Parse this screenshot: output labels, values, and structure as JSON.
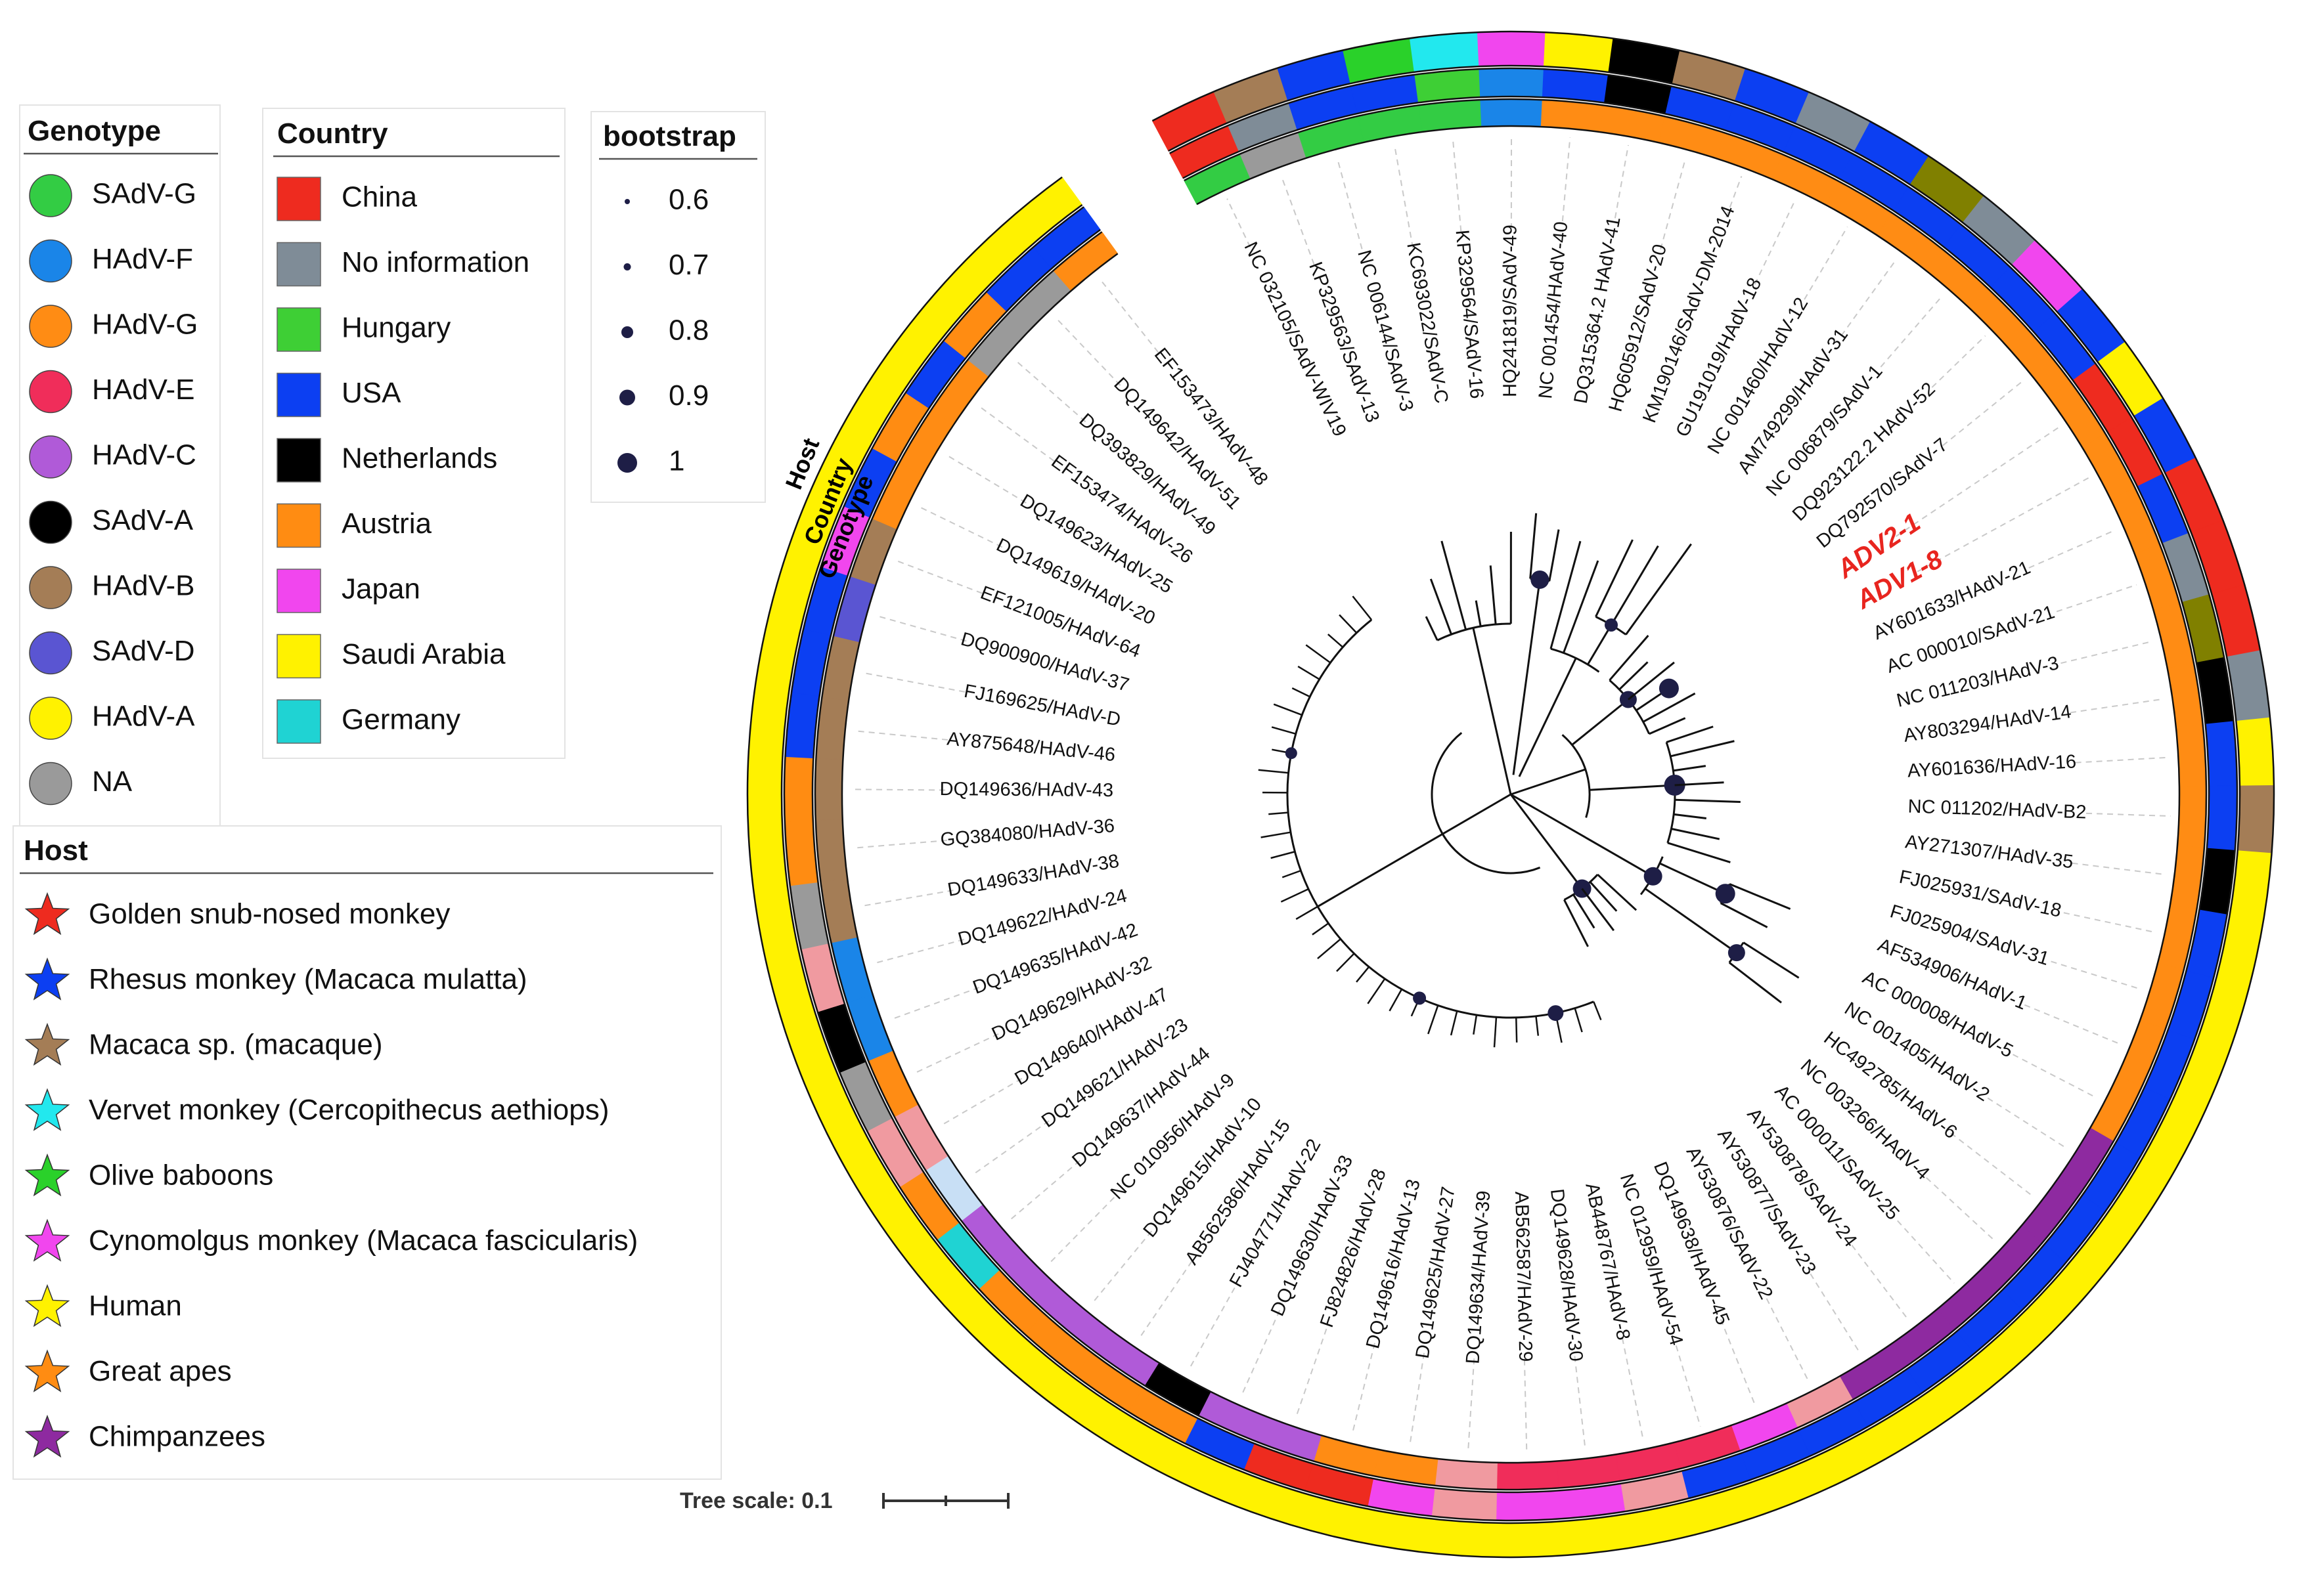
{
  "legends": {
    "genotype": {
      "title": "Genotype",
      "items": [
        {
          "label": "SAdV-G",
          "color": "#33cc44"
        },
        {
          "label": "HAdV-F",
          "color": "#1a85e8"
        },
        {
          "label": "HAdV-G",
          "color": "#ff8c14"
        },
        {
          "label": "HAdV-E",
          "color": "#f02d5a"
        },
        {
          "label": "HAdV-C",
          "color": "#b05ad8"
        },
        {
          "label": "SAdV-A",
          "color": "#000000"
        },
        {
          "label": "HAdV-B",
          "color": "#a47d56"
        },
        {
          "label": "SAdV-D",
          "color": "#5a55d2"
        },
        {
          "label": "HAdV-A",
          "color": "#fff200"
        },
        {
          "label": "NA",
          "color": "#9a9a9a"
        }
      ]
    },
    "country": {
      "title": "Country",
      "items": [
        {
          "label": "China",
          "color": "#ee2b1f"
        },
        {
          "label": "No information",
          "color": "#7f8c97"
        },
        {
          "label": "Hungary",
          "color": "#3ecf35"
        },
        {
          "label": "USA",
          "color": "#0c3ff2"
        },
        {
          "label": "Netherlands",
          "color": "#000000"
        },
        {
          "label": "Austria",
          "color": "#ff8c12"
        },
        {
          "label": "Japan",
          "color": "#f146ee"
        },
        {
          "label": "Saudi Arabia",
          "color": "#fff200"
        },
        {
          "label": "Germany",
          "color": "#1fd3d3"
        }
      ]
    },
    "bootstrap": {
      "title": "bootstrap",
      "items": [
        "0.6",
        "0.7",
        "0.8",
        "0.9",
        "1"
      ],
      "color": "#1e1e46"
    },
    "host": {
      "title": "Host",
      "items": [
        {
          "label": "Golden snub-nosed monkey",
          "color": "#ee2b1f"
        },
        {
          "label": "Rhesus monkey (Macaca mulatta)",
          "color": "#0c3ff2"
        },
        {
          "label": "Macaca sp. (macaque)",
          "color": "#a47d56"
        },
        {
          "label": "Vervet monkey (Cercopithecus aethiops)",
          "color": "#22e8ee"
        },
        {
          "label": "Olive baboons",
          "color": "#2ad12a"
        },
        {
          "label": "Cynomolgus monkey (Macaca fascicularis)",
          "color": "#f146ee"
        },
        {
          "label": "Human",
          "color": "#fff200"
        },
        {
          "label": "Great apes",
          "color": "#ff8c12"
        },
        {
          "label": "Chimpanzees",
          "color": "#8e2aa0"
        }
      ]
    }
  },
  "ring_labels": {
    "host": "Host",
    "country": "Country",
    "genotype": "Genotype"
  },
  "tree_scale": {
    "label": "Tree scale: 0.1"
  },
  "highlight_color": "#e8251f",
  "taxa": [
    {
      "name": "NC 032105/SAdV-WIV19"
    },
    {
      "name": "KP329563/SAdV-13"
    },
    {
      "name": "NC 006144/SAdV-3"
    },
    {
      "name": "KC693022/SAdV-C"
    },
    {
      "name": "KP329564/SAdV-16"
    },
    {
      "name": "HQ241819/SAdV-49"
    },
    {
      "name": "NC 001454/HAdV-40"
    },
    {
      "name": "DQ315364.2 HAdV-41"
    },
    {
      "name": "HQ605912/SAdV-20"
    },
    {
      "name": "KM190146/SAdV-DM-2014"
    },
    {
      "name": "GU191019/HAdV-18"
    },
    {
      "name": "NC 001460/HAdV-12"
    },
    {
      "name": "AM749299/HAdV-31"
    },
    {
      "name": "NC 006879/SAdV-1"
    },
    {
      "name": "DQ923122.2 HAdV-52"
    },
    {
      "name": "DQ792570/SAdV-7"
    },
    {
      "name": "ADV2-1",
      "highlight": true
    },
    {
      "name": "ADV1-8",
      "highlight": true
    },
    {
      "name": "AY601633/HAdV-21"
    },
    {
      "name": "AC 000010/SAdV-21"
    },
    {
      "name": "NC 011203/HAdV-3"
    },
    {
      "name": "AY803294/HAdV-14"
    },
    {
      "name": "AY601636/HAdV-16"
    },
    {
      "name": "NC 011202/HAdV-B2"
    },
    {
      "name": "AY271307/HAdV-35"
    },
    {
      "name": "FJ025931/SAdV-18"
    },
    {
      "name": "FJ025904/SAdV-31"
    },
    {
      "name": "AF534906/HAdV-1"
    },
    {
      "name": "AC 000008/HAdV-5"
    },
    {
      "name": "NC 001405/HAdV-2"
    },
    {
      "name": "HC492785/HAdV-6"
    },
    {
      "name": "NC 003266/HAdV-4"
    },
    {
      "name": "AC 000011/SAdV-25"
    },
    {
      "name": "AY530878/SAdV-24"
    },
    {
      "name": "AY530877/SAdV-23"
    },
    {
      "name": "AY530876/SAdV-22"
    },
    {
      "name": "DQ149638/HAdV-45"
    },
    {
      "name": "NC 012959/HAdV-54"
    },
    {
      "name": "AB448767/HAdV-8"
    },
    {
      "name": "DQ149628/HAdV-30"
    },
    {
      "name": "AB562587/HAdV-29"
    },
    {
      "name": "DQ149634/HAdV-39"
    },
    {
      "name": "DQ149625/HAdV-27"
    },
    {
      "name": "DQ149616/HAdV-13"
    },
    {
      "name": "FJ824826/HAdV-28"
    },
    {
      "name": "DQ149630/HAdV-33"
    },
    {
      "name": "FJ404771/HAdV-22"
    },
    {
      "name": "AB562586/HAdV-15"
    },
    {
      "name": "DQ149615/HAdV-10"
    },
    {
      "name": "NC 010956/HAdV-9"
    },
    {
      "name": "DQ149637/HAdV-44"
    },
    {
      "name": "DQ149621/HAdV-23"
    },
    {
      "name": "DQ149640/HAdV-47"
    },
    {
      "name": "DQ149629/HAdV-32"
    },
    {
      "name": "DQ149635/HAdV-42"
    },
    {
      "name": "DQ149622/HAdV-24"
    },
    {
      "name": "DQ149633/HAdV-38"
    },
    {
      "name": "GQ384080/HAdV-36"
    },
    {
      "name": "DQ149636/HAdV-43"
    },
    {
      "name": "AY875648/HAdV-46"
    },
    {
      "name": "FJ169625/HAdV-D"
    },
    {
      "name": "DQ900900/HAdV-37"
    },
    {
      "name": "EF121005/HAdV-64"
    },
    {
      "name": "DQ149619/HAdV-20"
    },
    {
      "name": "DQ149623/HAdV-25"
    },
    {
      "name": "EF153474/HAdV-26"
    },
    {
      "name": "DQ393829/HAdV-49"
    },
    {
      "name": "DQ149642/HAdV-51"
    },
    {
      "name": "EF153473/HAdV-48"
    }
  ],
  "rings": {
    "host": [
      "#ee2b1f",
      "#a47d56",
      "#0c3ff2",
      "#2ad12a",
      "#22e8ee",
      "#f146ee",
      "#fff200",
      "#000000",
      "#a47d56",
      "#0c3ff2",
      "#7f8c97",
      "#0c3ff2",
      "#808000",
      "#7f8c97",
      "#f146ee",
      "#0c3ff2",
      "#fff200",
      "#0c3ff2",
      "#ee2b1f",
      "#ee2b1f",
      "#ee2b1f",
      "#7f8c97",
      "#fff200",
      "#a47d56",
      "#fff200",
      "#fff200",
      "#fff200",
      "#fff200",
      "#fff200",
      "#fff200",
      "#fff200",
      "#fff200",
      "#fff200",
      "#fff200",
      "#fff200",
      "#fff200",
      "#fff200",
      "#fff200",
      "#fff200",
      "#fff200",
      "#fff200",
      "#fff200",
      "#fff200",
      "#fff200",
      "#fff200",
      "#fff200",
      "#fff200",
      "#fff200",
      "#fff200",
      "#fff200",
      "#fff200",
      "#fff200",
      "#fff200",
      "#fff200",
      "#fff200",
      "#fff200",
      "#fff200",
      "#fff200",
      "#fff200",
      "#fff200",
      "#fff200",
      "#fff200",
      "#fff200",
      "#fff200",
      "#fff200",
      "#fff200",
      "#fff200",
      "#fff200",
      "#fff200"
    ],
    "country": [
      "#ee2b1f",
      "#7f8c97",
      "#0c3ff2",
      "#0c3ff2",
      "#3ecf35",
      "#1a85e8",
      "#0c3ff2",
      "#000000",
      "#0c3ff2",
      "#0c3ff2",
      "#0c3ff2",
      "#0c3ff2",
      "#0c3ff2",
      "#0c3ff2",
      "#0c3ff2",
      "#0c3ff2",
      "#ee2b1f",
      "#ee2b1f",
      "#0c3ff2",
      "#7f8c97",
      "#808000",
      "#000000",
      "#0c3ff2",
      "#0c3ff2",
      "#000000",
      "#0c3ff2",
      "#0c3ff2",
      "#0c3ff2",
      "#0c3ff2",
      "#0c3ff2",
      "#0c3ff2",
      "#0c3ff2",
      "#0c3ff2",
      "#0c3ff2",
      "#0c3ff2",
      "#0c3ff2",
      "#0c3ff2",
      "#0c3ff2",
      "#f09aa0",
      "#f146ee",
      "#f146ee",
      "#f09aa0",
      "#f146ee",
      "#ee2b1f",
      "#ee2b1f",
      "#0c3ff2",
      "#ff8c12",
      "#ff8c12",
      "#ff8c12",
      "#ff8c12",
      "#1fd3d3",
      "#ff8c12",
      "#f09aa0",
      "#9a9a9a",
      "#000000",
      "#f09aa0",
      "#9a9a9a",
      "#ff8c12",
      "#ff8c12",
      "#0c3ff2",
      "#0c3ff2",
      "#0c3ff2",
      "#f146ee",
      "#0c3ff2",
      "#ff8c12",
      "#0c3ff2",
      "#ff8c12",
      "#0c3ff2",
      "#0c3ff2"
    ],
    "genotype": [
      "#33cc44",
      "#9a9a9a",
      "#33cc44",
      "#33cc44",
      "#33cc44",
      "#1a85e8",
      "#ff8c14",
      "#ff8c14",
      "#ff8c14",
      "#ff8c14",
      "#ff8c14",
      "#ff8c14",
      "#ff8c14",
      "#ff8c14",
      "#ff8c14",
      "#ff8c14",
      "#ff8c14",
      "#ff8c14",
      "#ff8c14",
      "#ff8c14",
      "#ff8c14",
      "#ff8c14",
      "#ff8c14",
      "#ff8c14",
      "#ff8c14",
      "#ff8c14",
      "#ff8c14",
      "#ff8c14",
      "#ff8c14",
      "#8e2aa0",
      "#8e2aa0",
      "#8e2aa0",
      "#8e2aa0",
      "#8e2aa0",
      "#8e2aa0",
      "#f09aa0",
      "#f146ee",
      "#f02d5a",
      "#f02d5a",
      "#f02d5a",
      "#f02d5a",
      "#f09aa0",
      "#ff8c14",
      "#ff8c14",
      "#b05ad8",
      "#b05ad8",
      "#000000",
      "#b05ad8",
      "#b05ad8",
      "#b05ad8",
      "#b05ad8",
      "#c8dff5",
      "#f09aa0",
      "#ff8c14",
      "#1a85e8",
      "#1a85e8",
      "#a47d56",
      "#a47d56",
      "#a47d56",
      "#a47d56",
      "#a47d56",
      "#5a55d2",
      "#a47d56",
      "#ff8c14",
      "#ff8c14",
      "#ff8c14",
      "#9a9a9a",
      "#9a9a9a",
      "#ff8c14"
    ]
  }
}
